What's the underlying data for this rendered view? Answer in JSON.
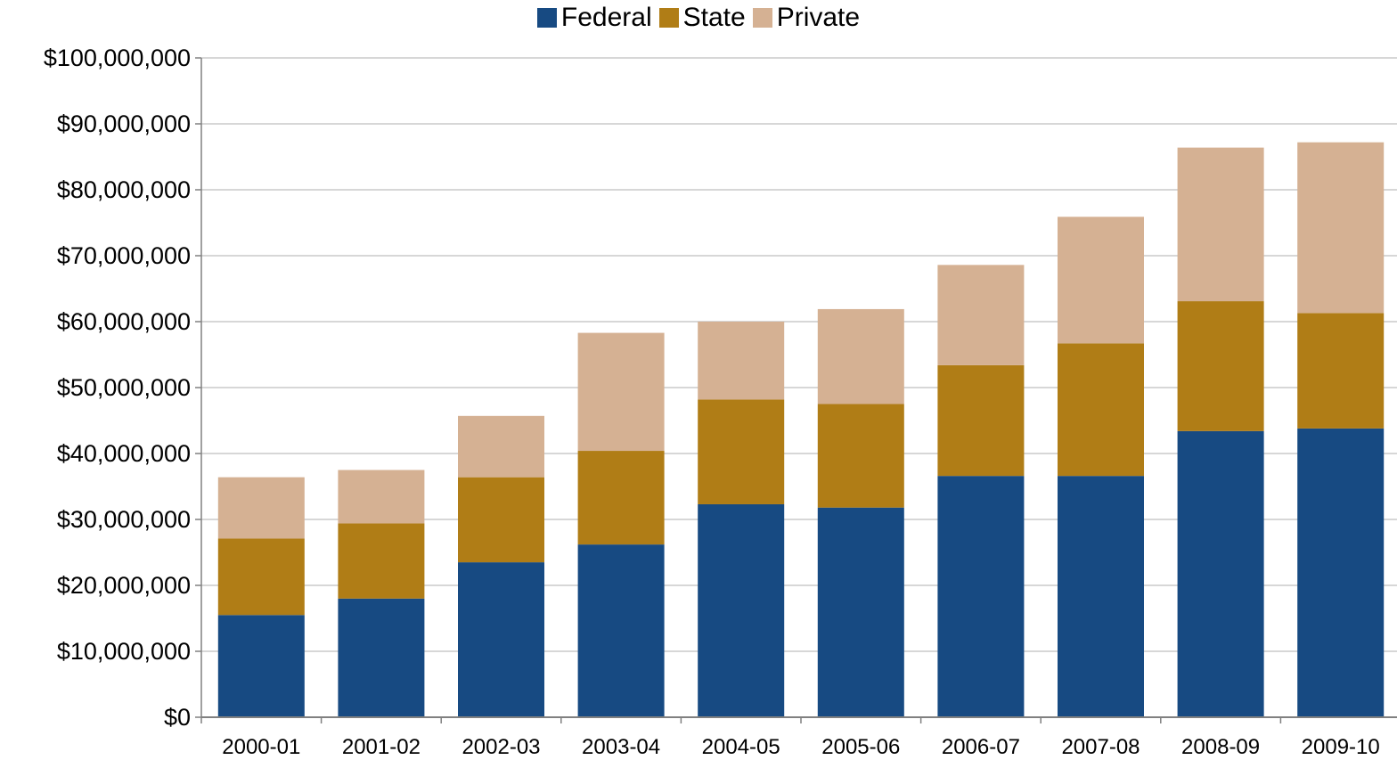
{
  "chart_data": {
    "type": "bar",
    "stacked": true,
    "categories": [
      "2000-01",
      "2001-02",
      "2002-03",
      "2003-04",
      "2004-05",
      "2005-06",
      "2006-07",
      "2007-08",
      "2008-09",
      "2009-10"
    ],
    "series": [
      {
        "name": "Federal",
        "color": "#174a82",
        "values": [
          15500000,
          18000000,
          23500000,
          26200000,
          32300000,
          31800000,
          36600000,
          36600000,
          43400000,
          43800000
        ]
      },
      {
        "name": "State",
        "color": "#b07d16",
        "values": [
          11600000,
          11400000,
          12900000,
          14200000,
          15900000,
          15700000,
          16800000,
          20100000,
          19700000,
          17500000
        ]
      },
      {
        "name": "Private",
        "color": "#d5b193",
        "values": [
          9300000,
          8100000,
          9300000,
          17900000,
          11800000,
          14400000,
          15200000,
          19200000,
          23300000,
          25900000
        ]
      }
    ],
    "y_ticks": [
      "$0",
      "$10,000,000",
      "$20,000,000",
      "$30,000,000",
      "$40,000,000",
      "$50,000,000",
      "$60,000,000",
      "$70,000,000",
      "$80,000,000",
      "$90,000,000",
      "$100,000,000"
    ],
    "ylim": [
      0,
      100000000
    ],
    "grid": true,
    "legend_position": "top"
  }
}
